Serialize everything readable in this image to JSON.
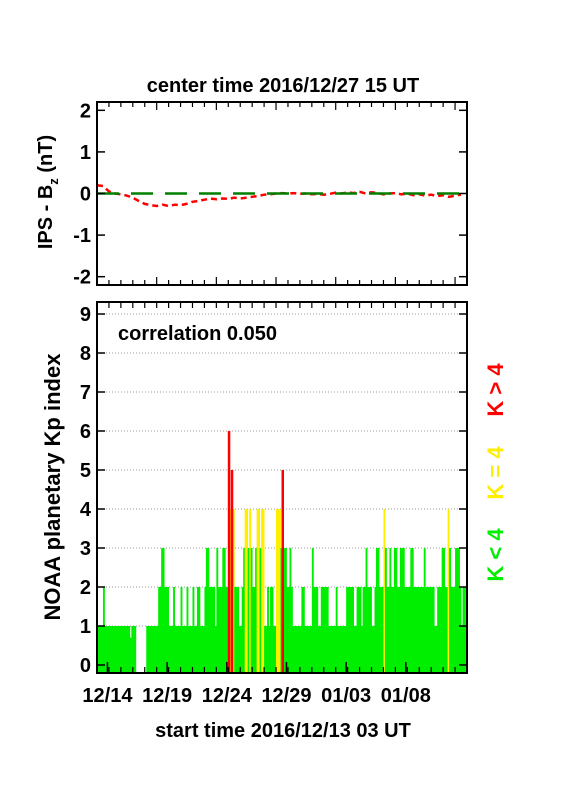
{
  "chart_data": [
    {
      "type": "line",
      "title": "center time 2016/12/27 15 UT",
      "ylabel_main": "IPS - B",
      "ylabel_sub": "z",
      "ylabel_unit": " (nT)",
      "ylim": [
        -2.2,
        2.2
      ],
      "yticks": [
        "2",
        "1",
        "0",
        "-1",
        "-2"
      ],
      "ytick_values": [
        2,
        1,
        0,
        -1,
        -2
      ],
      "xlim_days": [
        0,
        31
      ],
      "series": [
        {
          "style": "dashed",
          "color": "#ff0000",
          "points": [
            [
              0.0,
              0.2
            ],
            [
              0.5,
              0.18
            ],
            [
              1.0,
              0.05
            ],
            [
              1.5,
              0.0
            ],
            [
              2.0,
              -0.02
            ],
            [
              2.5,
              -0.05
            ],
            [
              3.0,
              -0.1
            ],
            [
              3.5,
              -0.18
            ],
            [
              4.0,
              -0.25
            ],
            [
              4.5,
              -0.28
            ],
            [
              5.0,
              -0.3
            ],
            [
              5.5,
              -0.27
            ],
            [
              6.0,
              -0.3
            ],
            [
              6.5,
              -0.27
            ],
            [
              7.0,
              -0.28
            ],
            [
              7.5,
              -0.25
            ],
            [
              8.0,
              -0.2
            ],
            [
              8.5,
              -0.18
            ],
            [
              9.0,
              -0.15
            ],
            [
              9.5,
              -0.12
            ],
            [
              10.0,
              -0.14
            ],
            [
              10.5,
              -0.12
            ],
            [
              11.0,
              -0.13
            ],
            [
              11.5,
              -0.1
            ],
            [
              12.0,
              -0.12
            ],
            [
              12.5,
              -0.1
            ],
            [
              13.0,
              -0.08
            ],
            [
              13.5,
              -0.06
            ],
            [
              14.0,
              -0.03
            ],
            [
              14.5,
              -0.02
            ],
            [
              15.0,
              0.0
            ],
            [
              15.5,
              0.01
            ],
            [
              16.0,
              0.0
            ],
            [
              16.5,
              0.01
            ],
            [
              17.0,
              -0.01
            ],
            [
              17.5,
              0.0
            ],
            [
              18.0,
              -0.02
            ],
            [
              18.5,
              -0.01
            ],
            [
              19.0,
              -0.03
            ],
            [
              19.5,
              -0.01
            ],
            [
              20.0,
              0.02
            ],
            [
              20.5,
              0.0
            ],
            [
              21.0,
              0.03
            ],
            [
              21.5,
              0.01
            ],
            [
              22.0,
              0.04
            ],
            [
              22.5,
              0.0
            ],
            [
              23.0,
              0.03
            ],
            [
              23.5,
              0.01
            ],
            [
              24.0,
              -0.02
            ],
            [
              24.5,
              0.0
            ],
            [
              25.0,
              0.01
            ],
            [
              25.5,
              -0.02
            ],
            [
              26.0,
              0.0
            ],
            [
              26.5,
              -0.04
            ],
            [
              27.0,
              -0.02
            ],
            [
              27.5,
              -0.05
            ],
            [
              28.0,
              -0.03
            ],
            [
              28.5,
              -0.06
            ],
            [
              29.0,
              -0.04
            ],
            [
              29.5,
              -0.08
            ],
            [
              30.0,
              -0.05
            ],
            [
              30.5,
              -0.03
            ]
          ]
        },
        {
          "style": "long-dash",
          "color": "#008000",
          "points": [
            [
              0,
              0
            ],
            [
              31,
              0
            ]
          ]
        }
      ]
    },
    {
      "type": "bar",
      "ylabel": "NOAA planetary Kp index",
      "annotation": "correlation 0.050",
      "ylim": [
        0,
        9
      ],
      "yticks": [
        "9",
        "8",
        "7",
        "6",
        "5",
        "4",
        "3",
        "2",
        "1",
        "0"
      ],
      "ytick_values": [
        9,
        8,
        7,
        6,
        5,
        4,
        3,
        2,
        1,
        0
      ],
      "xlabel": "start time 2016/12/13 03 UT",
      "xticks": [
        "12/14",
        "12/19",
        "12/24",
        "12/29",
        "01/03",
        "01/08"
      ],
      "xtick_days": [
        0.875,
        5.875,
        10.875,
        15.875,
        20.875,
        25.875
      ],
      "xlim_days": [
        0,
        31
      ],
      "interval_hours": 3,
      "kp_values": [
        1,
        1,
        1,
        1,
        2,
        1,
        1,
        1,
        1,
        1,
        1,
        1,
        1,
        1,
        1,
        1,
        1,
        1,
        1,
        1,
        1,
        1,
        0.7,
        1,
        1,
        1,
        0,
        0,
        0,
        0,
        0,
        0,
        0,
        1,
        1,
        1,
        1,
        1,
        1,
        1,
        1,
        2,
        2,
        3,
        3,
        2,
        2,
        2,
        1,
        1,
        1,
        2,
        1,
        1,
        1,
        1,
        2,
        1,
        1,
        1,
        2,
        1,
        1,
        1,
        2,
        1,
        1,
        2,
        2,
        1,
        1,
        1,
        2,
        3,
        3,
        2,
        2,
        2,
        2,
        1,
        3,
        2,
        2,
        2,
        3,
        3,
        2,
        2,
        6,
        4,
        5,
        4,
        2,
        2,
        2,
        1,
        1,
        2,
        3,
        4,
        4,
        3,
        4,
        3,
        2,
        2,
        3,
        4,
        4,
        3,
        4,
        4,
        1,
        1,
        2,
        1,
        2,
        2,
        1,
        1,
        4,
        4,
        4,
        3,
        5,
        3,
        3,
        2,
        2,
        3,
        2,
        1,
        1,
        1,
        1,
        1,
        1,
        2,
        2,
        1,
        1,
        1,
        1,
        1,
        3,
        2,
        2,
        2,
        1,
        1,
        2,
        2,
        2,
        2,
        2,
        1,
        1,
        1,
        1,
        1,
        2,
        1,
        1,
        1,
        1,
        1,
        1,
        2,
        2,
        2,
        2,
        2,
        1,
        1,
        2,
        2,
        2,
        1,
        2,
        2,
        3,
        2,
        2,
        2,
        1,
        1,
        2,
        3,
        3,
        2,
        2,
        2,
        4,
        3,
        2,
        2,
        3,
        2,
        2,
        3,
        3,
        2,
        2,
        3,
        3,
        3,
        2,
        2,
        2,
        2,
        3,
        3,
        2,
        2,
        2,
        2,
        2,
        2,
        2,
        3,
        2,
        2,
        2,
        2,
        2,
        2,
        1,
        1,
        2,
        2,
        2,
        3,
        3,
        2,
        2,
        4,
        3,
        2,
        2,
        2,
        3,
        3,
        3,
        2,
        1,
        2,
        2,
        1,
        4,
        3,
        4,
        2,
        3,
        3,
        3,
        4,
        4,
        4,
        3,
        2,
        2,
        3,
        3,
        3,
        4,
        3,
        3,
        3,
        2,
        2,
        2,
        3,
        4,
        3,
        3,
        3,
        3,
        3,
        2,
        3,
        3,
        3,
        3,
        4,
        4,
        3,
        3,
        2,
        2,
        2,
        2,
        3,
        3,
        2,
        2,
        3,
        3,
        3,
        3,
        2,
        2,
        2,
        3,
        3,
        3,
        3,
        2,
        2,
        1,
        2,
        2,
        3
      ],
      "legend": [
        {
          "label": "K < 4",
          "color": "#00ee00"
        },
        {
          "label": "K = 4",
          "color": "#ffee00"
        },
        {
          "label": "K > 4",
          "color": "#ff0000"
        }
      ],
      "colors": {
        "low": "#00ee00",
        "mid": "#ffee00",
        "high": "#ff0000"
      },
      "grid": true
    }
  ]
}
